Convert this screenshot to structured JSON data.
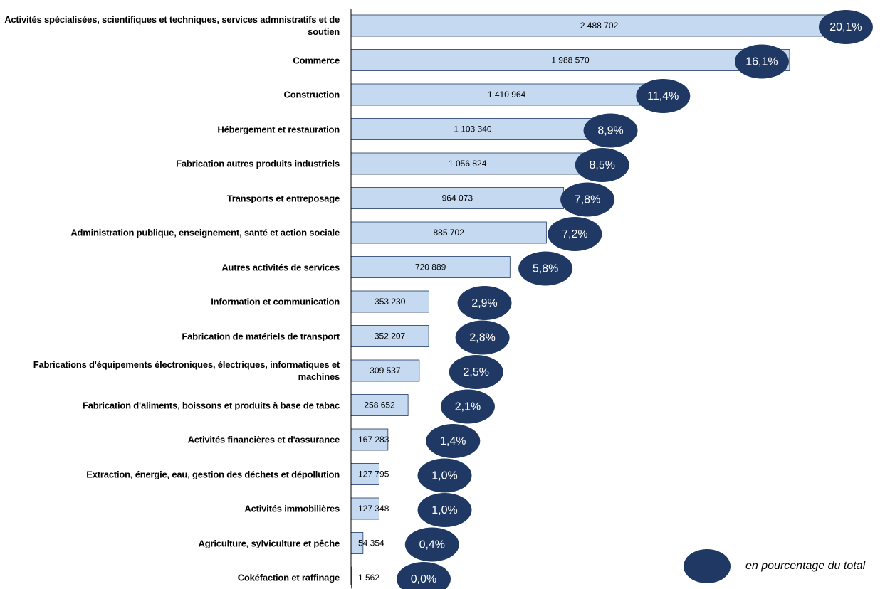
{
  "chart_data": {
    "type": "bar",
    "orientation": "horizontal",
    "categories": [
      "Activités spécialisées, scientifiques et techniques, services admnistratifs et de soutien",
      "Commerce",
      "Construction",
      "Hébergement et restauration",
      "Fabrication autres produits industriels",
      "Transports et entreposage",
      "Administration publique, enseignement, santé et action sociale",
      "Autres activités de services",
      "Information et communication",
      "Fabrication de matériels de transport",
      "Fabrications d'équipements électroniques, électriques, informatiques et machines",
      "Fabrication d'aliments, boissons et produits à base de tabac",
      "Activités financières et d'assurance",
      "Extraction, énergie, eau, gestion des déchets et dépollution",
      "Activités immobilières",
      "Agriculture, sylviculture et pêche",
      "Cokéfaction et raffinage"
    ],
    "values": [
      2488702,
      1988570,
      1410964,
      1103340,
      1056824,
      964073,
      885702,
      720889,
      353230,
      352207,
      309537,
      258652,
      167283,
      127795,
      127348,
      54354,
      1562
    ],
    "value_labels": [
      "2 488 702",
      "1 988 570",
      "1 410 964",
      "1 103 340",
      "1 056 824",
      "964 073",
      "885 702",
      "720 889",
      "353 230",
      "352 207",
      "309 537",
      "258 652",
      "167 283",
      "127 795",
      "127 348",
      "54 354",
      "1 562"
    ],
    "color": "#c5d9f1",
    "xlim": [
      0,
      2250000
    ],
    "shares": {
      "name": "en pourcentage du total",
      "color": "#1f3864",
      "values": [
        20.1,
        16.1,
        11.4,
        8.9,
        8.5,
        7.8,
        7.2,
        5.8,
        2.9,
        2.8,
        2.5,
        2.1,
        1.4,
        1.0,
        1.0,
        0.4,
        0.0
      ],
      "value_labels": [
        "20,1%",
        "16,1%",
        "11,4%",
        "8,9%",
        "8,5%",
        "7,8%",
        "7,2%",
        "5,8%",
        "2,9%",
        "2,8%",
        "2,5%",
        "2,1%",
        "1,4%",
        "1,0%",
        "1,0%",
        "0,4%",
        "0,0%"
      ]
    }
  }
}
